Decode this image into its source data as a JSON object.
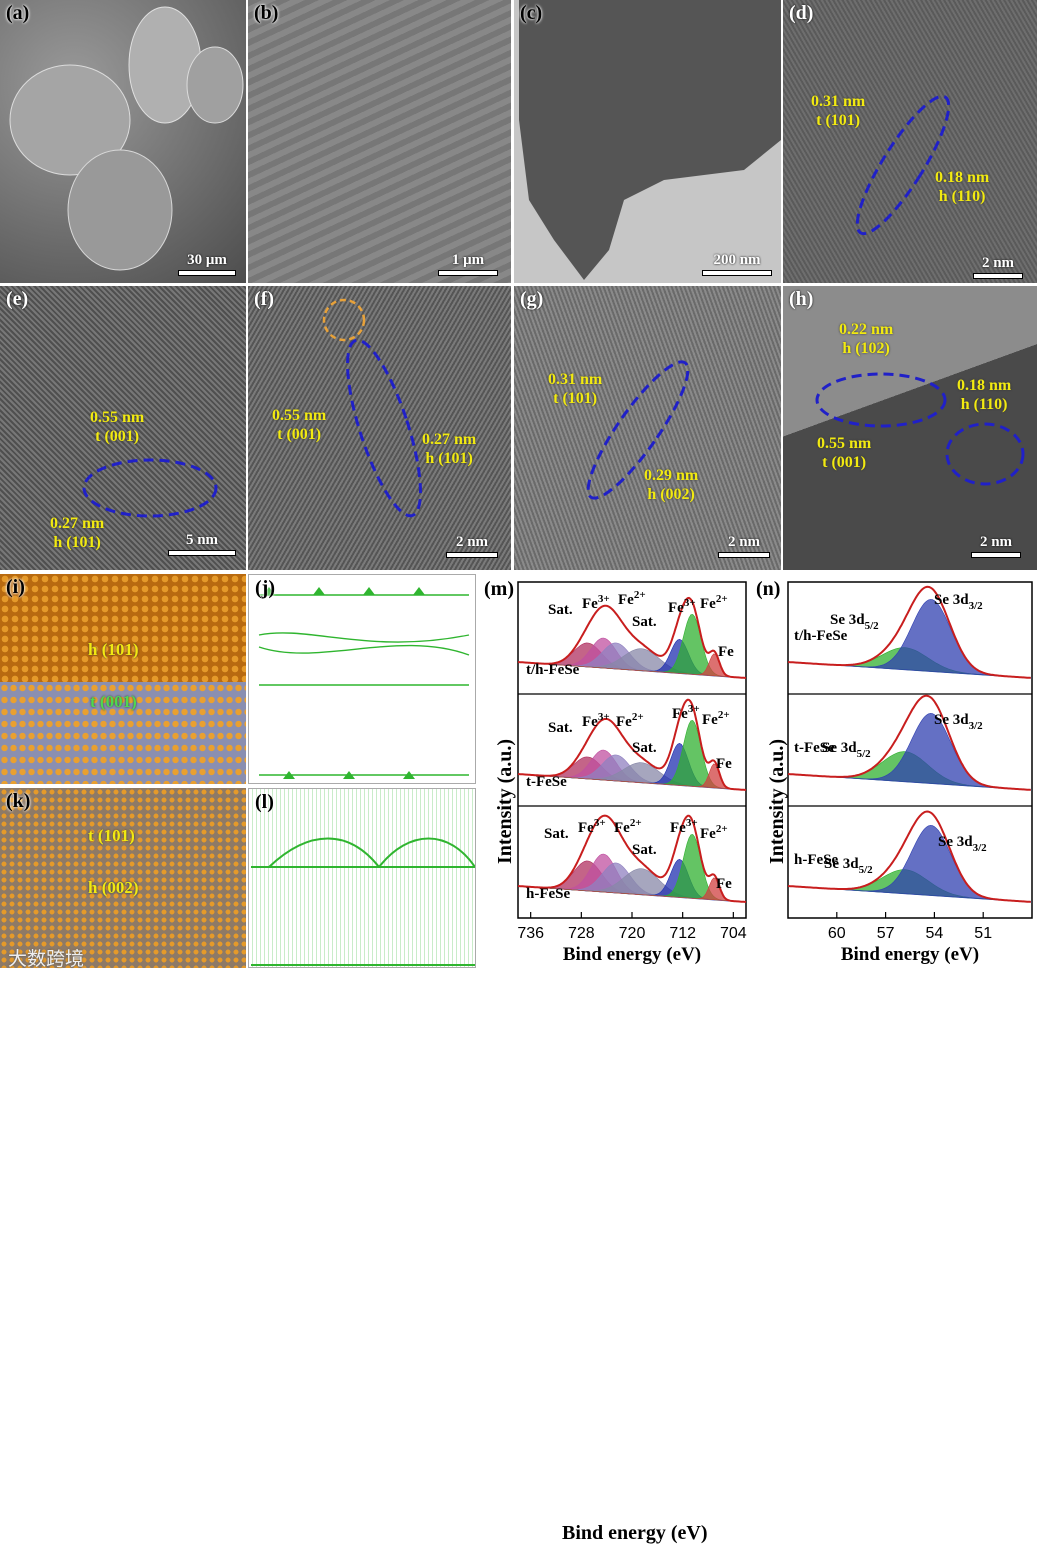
{
  "panels": {
    "a": {
      "label": "(a)",
      "scale": "30 μm"
    },
    "b": {
      "label": "(b)",
      "scale": "1 μm"
    },
    "c": {
      "label": "(c)",
      "scale": "200 nm"
    },
    "d": {
      "label": "(d)",
      "scale": "2 nm",
      "ann1a": "0.31 nm",
      "ann1b": "t (101)",
      "ann2a": "0.18 nm",
      "ann2b": "h (110)"
    },
    "e": {
      "label": "(e)",
      "scale": "5 nm",
      "ann1a": "0.55 nm",
      "ann1b": "t (001)",
      "ann2a": "0.27 nm",
      "ann2b": "h (101)"
    },
    "f": {
      "label": "(f)",
      "scale": "2 nm",
      "ann1a": "0.55 nm",
      "ann1b": "t (001)",
      "ann2a": "0.27 nm",
      "ann2b": "h (101)"
    },
    "g": {
      "label": "(g)",
      "scale": "2 nm",
      "ann1a": "0.31 nm",
      "ann1b": "t (101)",
      "ann2a": "0.29 nm",
      "ann2b": "h (002)"
    },
    "h": {
      "label": "(h)",
      "scale": "2 nm",
      "ann1a": "0.22 nm",
      "ann1b": "h (102)",
      "ann2a": "0.18 nm",
      "ann2b": "h (110)",
      "ann3a": "0.55 nm",
      "ann3b": "t (001)"
    },
    "i": {
      "label": "(i)",
      "top": "h (101)",
      "bottom": "t (001)"
    },
    "j": {
      "label": "(j)"
    },
    "k": {
      "label": "(k)",
      "top": "t (101)",
      "bottom": "h (002)"
    },
    "l": {
      "label": "(l)"
    }
  },
  "colors": {
    "fe": "#3a9a3a",
    "se": "#e08a1e",
    "field": "#2fb52f",
    "ellipse": "#2020c8",
    "circle": "#e8a23a",
    "fit": "#c81e1e",
    "label": "#f2ea11"
  },
  "chart_data": [
    {
      "type": "area",
      "panel": "(m)",
      "title": "",
      "xlabel": "Bind energy (eV)",
      "ylabel": "Intensity (a.u.)",
      "xlim": [
        738,
        702
      ],
      "xticks": [
        "736",
        "728",
        "720",
        "712",
        "704"
      ],
      "series_names": [
        "t/h-FeSe",
        "t-FeSe",
        "h-FeSe"
      ],
      "peaks": [
        {
          "name": "Sat.",
          "x": 727.0,
          "color": "#b03060"
        },
        {
          "name": "Fe3+",
          "x": 724.5,
          "color": "#c050a0"
        },
        {
          "name": "Fe2+",
          "x": 722.5,
          "color": "#9080c0"
        },
        {
          "name": "Sat.",
          "x": 718.5,
          "color": "#8888a8"
        },
        {
          "name": "Fe3+",
          "x": 712.5,
          "color": "#2030b0"
        },
        {
          "name": "Fe2+",
          "x": 710.5,
          "color": "#30b030"
        },
        {
          "name": "Fe",
          "x": 707.0,
          "color": "#d04040"
        }
      ],
      "annotations": [
        "Sat.",
        "Fe3+",
        "Fe2+",
        "Sat.",
        "Fe3+",
        "Fe2+",
        "Fe"
      ]
    },
    {
      "type": "area",
      "panel": "(n)",
      "title": "",
      "xlabel": "Bind energy (eV)",
      "ylabel": "Intensity (a.u.)",
      "xlim": [
        63,
        48
      ],
      "xticks": [
        "60",
        "57",
        "54",
        "51"
      ],
      "series_names": [
        "t/h-FeSe",
        "t-FeSe",
        "h-FeSe"
      ],
      "peaks": [
        {
          "name": "Se 3d5/2",
          "x": 55.8,
          "color": "#30b030"
        },
        {
          "name": "Se 3d3/2",
          "x": 54.2,
          "color": "#3040b0"
        }
      ],
      "annotations": [
        "Se 3d5/2",
        "Se 3d3/2"
      ]
    }
  ],
  "xps": {
    "m": {
      "label": "(m)",
      "ylabel": "Intensity (a.u.)",
      "xlabel": "Bind energy (eV)",
      "ticks": [
        "736",
        "728",
        "720",
        "712",
        "704"
      ],
      "samples": [
        "t/h-FeSe",
        "t-FeSe",
        "h-FeSe"
      ]
    },
    "n": {
      "label": "(n)",
      "ylabel": "Intensity (a.u.)",
      "xlabel": "Bind energy (eV)",
      "ticks": [
        "60",
        "57",
        "54",
        "51"
      ],
      "samples": [
        "t/h-FeSe",
        "t-FeSe",
        "h-FeSe"
      ]
    }
  },
  "annotations_m": {
    "sat": "Sat.",
    "fe3": "Fe",
    "fe2": "Fe",
    "fe": "Fe",
    "sup3": "3+",
    "sup2": "2+"
  },
  "annotations_n": {
    "se": "Se 3d",
    "sub52": "5/2",
    "sub32": "3/2"
  },
  "watermark": "大数跨境"
}
